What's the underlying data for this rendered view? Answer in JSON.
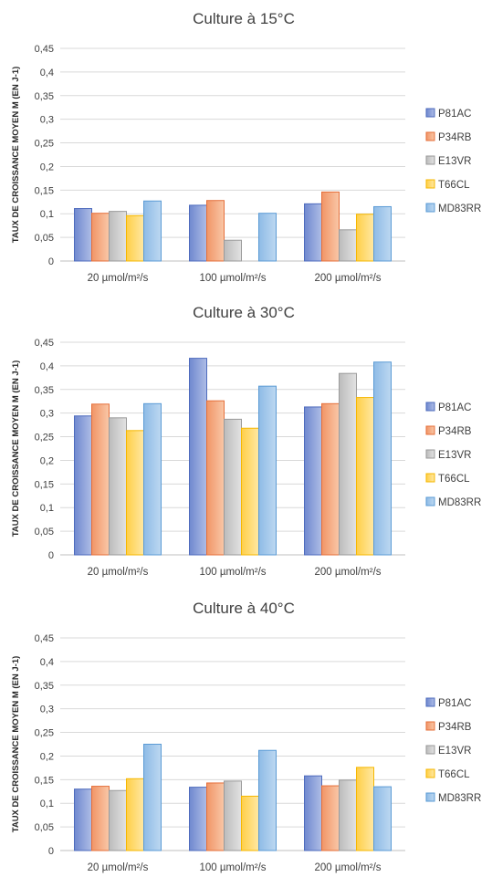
{
  "chart_data": [
    {
      "type": "bar",
      "title": "Culture à 15°C",
      "ylabel": "TAUX DE CROISSANCE MOYEN M (EN J-1)",
      "xlabel": "",
      "ylim": [
        0,
        0.45
      ],
      "yticks": [
        "0",
        "0,05",
        "0,1",
        "0,15",
        "0,2",
        "0,25",
        "0,3",
        "0,35",
        "0,4",
        "0,45"
      ],
      "grid": true,
      "legend": "right",
      "categories": [
        "20 µmol/m²/s",
        "100 µmol/m²/s",
        "200 µmol/m²/s"
      ],
      "series": [
        {
          "name": "P81AC",
          "values": [
            0.111,
            0.118,
            0.121
          ]
        },
        {
          "name": "P34RB",
          "values": [
            0.101,
            0.128,
            0.146
          ]
        },
        {
          "name": "E13VR",
          "values": [
            0.105,
            0.044,
            0.066
          ]
        },
        {
          "name": "T66CL",
          "values": [
            0.096,
            0,
            0.099
          ]
        },
        {
          "name": "MD83RR",
          "values": [
            0.127,
            0.101,
            0.115
          ]
        }
      ]
    },
    {
      "type": "bar",
      "title": "Culture à 30°C",
      "ylabel": "TAUX DE CROISSANCE MOYEN M (EN J-1)",
      "xlabel": "",
      "ylim": [
        0,
        0.45
      ],
      "yticks": [
        "0",
        "0,05",
        "0,1",
        "0,15",
        "0,2",
        "0,25",
        "0,3",
        "0,35",
        "0,4",
        "0,45"
      ],
      "grid": true,
      "legend": "right",
      "categories": [
        "20 µmol/m²/s",
        "100 µmol/m²/s",
        "200 µmol/m²/s"
      ],
      "series": [
        {
          "name": "P81AC",
          "values": [
            0.294,
            0.416,
            0.313
          ]
        },
        {
          "name": "P34RB",
          "values": [
            0.319,
            0.326,
            0.32
          ]
        },
        {
          "name": "E13VR",
          "values": [
            0.29,
            0.287,
            0.384
          ]
        },
        {
          "name": "T66CL",
          "values": [
            0.263,
            0.268,
            0.333
          ]
        },
        {
          "name": "MD83RR",
          "values": [
            0.32,
            0.357,
            0.408
          ]
        }
      ]
    },
    {
      "type": "bar",
      "title": "Culture à 40°C",
      "ylabel": "TAUX DE CROISSANCE MOYEN M (EN J-1)",
      "xlabel": "",
      "ylim": [
        0,
        0.45
      ],
      "yticks": [
        "0",
        "0,05",
        "0,1",
        "0,15",
        "0,2",
        "0,25",
        "0,3",
        "0,35",
        "0,4",
        "0,45"
      ],
      "grid": true,
      "legend": "right",
      "categories": [
        "20 µmol/m²/s",
        "100 µmol/m²/s",
        "200 µmol/m²/s"
      ],
      "series": [
        {
          "name": "P81AC",
          "values": [
            0.13,
            0.134,
            0.158
          ]
        },
        {
          "name": "P34RB",
          "values": [
            0.136,
            0.143,
            0.137
          ]
        },
        {
          "name": "E13VR",
          "values": [
            0.127,
            0.147,
            0.149
          ]
        },
        {
          "name": "T66CL",
          "values": [
            0.152,
            0.115,
            0.176
          ]
        },
        {
          "name": "MD83RR",
          "values": [
            0.225,
            0.212,
            0.135
          ]
        }
      ]
    }
  ],
  "colors": {
    "P81AC": {
      "light": "#aebde6",
      "dark": "#6f88cf",
      "stroke": "#4e6bbd"
    },
    "P34RB": {
      "light": "#f9c7a7",
      "dark": "#f19567",
      "stroke": "#e56f3a"
    },
    "E13VR": {
      "light": "#e2e2e2",
      "dark": "#bcbcbc",
      "stroke": "#9a9a9a"
    },
    "T66CL": {
      "light": "#ffe8a3",
      "dark": "#ffcf48",
      "stroke": "#f5b700"
    },
    "MD83RR": {
      "light": "#bdd8f1",
      "dark": "#8ebbe6",
      "stroke": "#5b9bd5"
    }
  }
}
